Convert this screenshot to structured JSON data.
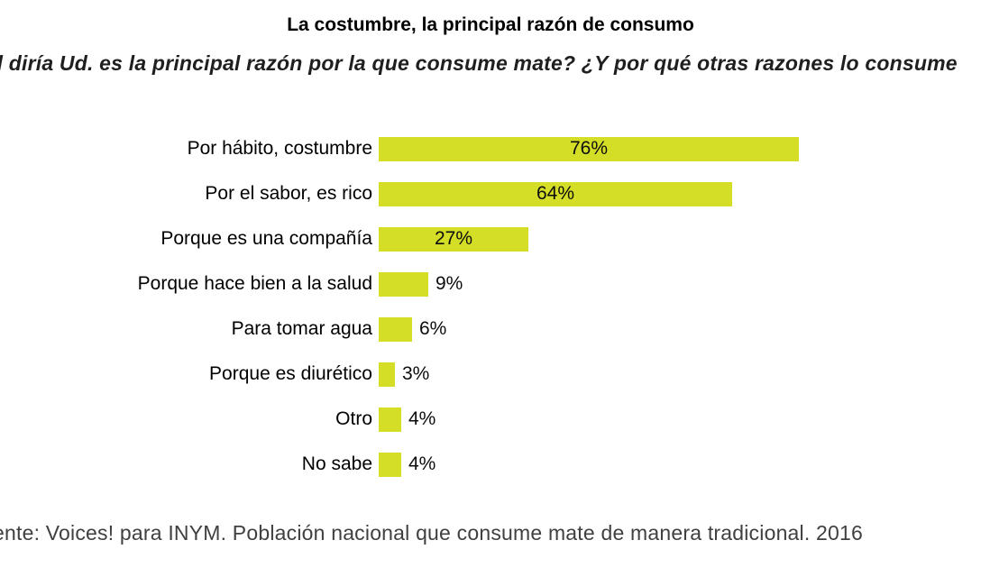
{
  "colors": {
    "bar": "#d4de27",
    "title": "#000000",
    "subtitle": "#1f1f1f",
    "source": "#404040",
    "value_label": "#0d0d0d"
  },
  "chart_data": {
    "type": "bar",
    "orientation": "horizontal",
    "title": "La costumbre, la principal razón de consumo",
    "subtitle": "il diría Ud. es la principal razón por la que consume mate? ¿Y por qué otras razones lo consume",
    "source": "ente: Voices! para INYM. Población nacional que consume mate de manera tradicional. 2016",
    "categories": [
      "Por hábito, costumbre",
      "Por el sabor, es rico",
      "Porque es una compañía",
      "Porque hace bien a la salud",
      "Para tomar agua",
      "Porque es diurético",
      "Otro",
      "No sabe"
    ],
    "values": [
      76,
      64,
      27,
      9,
      6,
      3,
      4,
      4
    ],
    "value_suffix": "%",
    "xlim": [
      0,
      100
    ],
    "grid": false,
    "legend": false,
    "value_label_position": "inside bar when value >= 20, otherwise right of bar"
  }
}
